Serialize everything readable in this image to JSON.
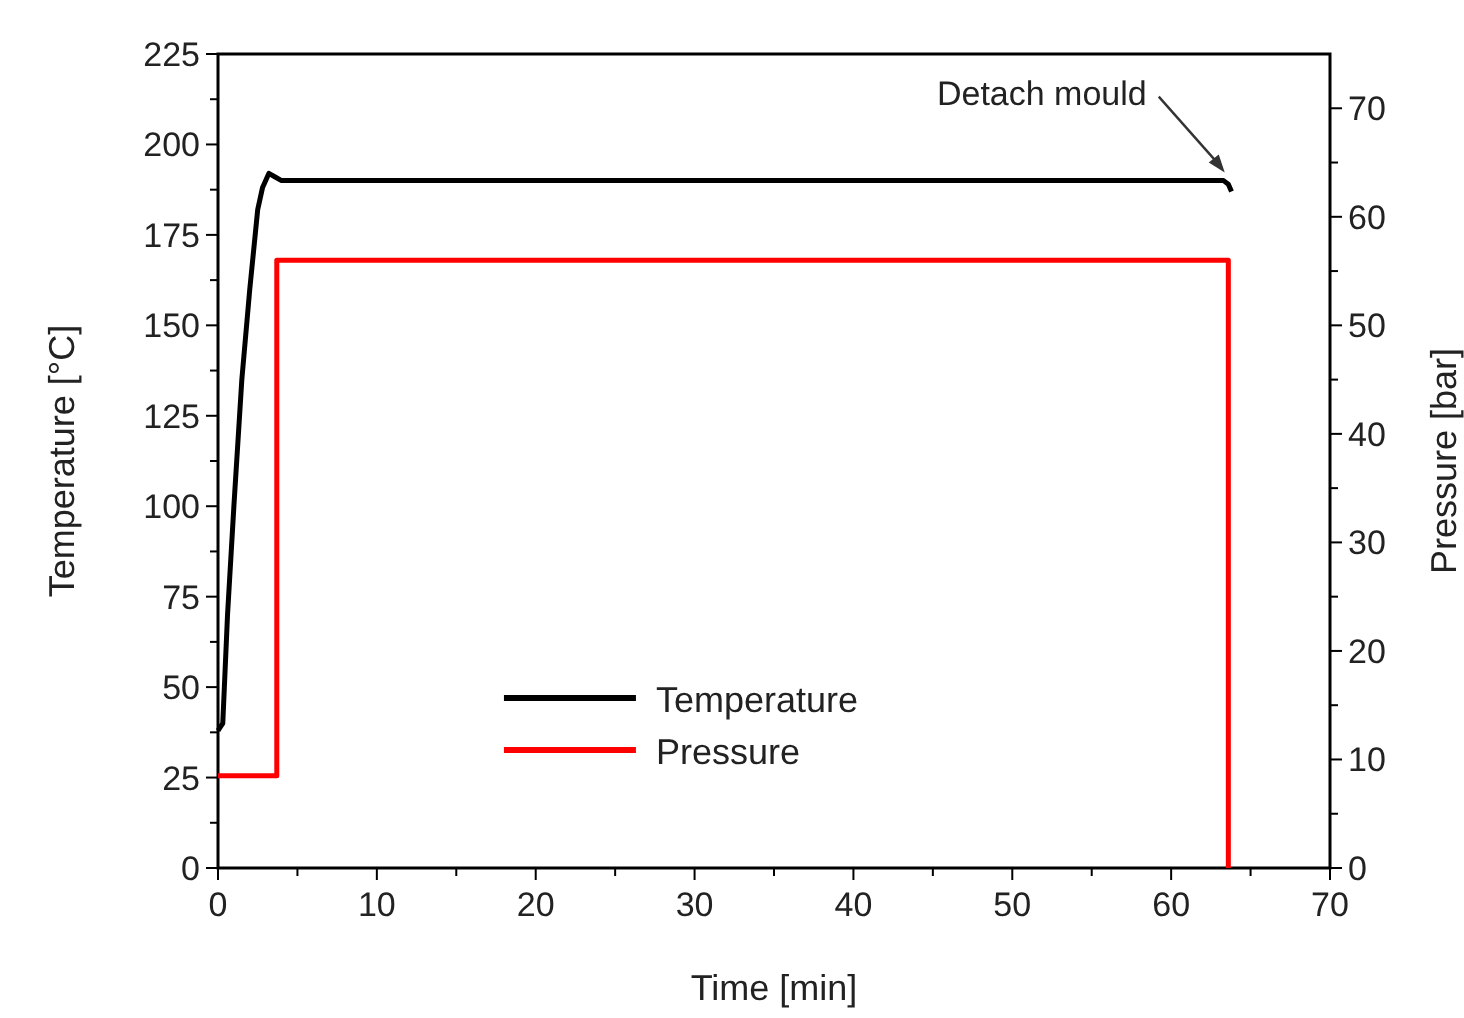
{
  "chart_data": {
    "type": "line",
    "xlabel": "Time [min]",
    "ylabel": "Temperature [°C]",
    "y2label": "Pressure [bar]",
    "xlim": [
      0,
      70
    ],
    "xticks": [
      0,
      10,
      20,
      30,
      40,
      50,
      60,
      70
    ],
    "ylim": [
      0,
      225
    ],
    "yticks": [
      0,
      25,
      50,
      75,
      100,
      125,
      150,
      175,
      200,
      225
    ],
    "y2lim": [
      0,
      75
    ],
    "y2ticks": [
      0,
      10,
      20,
      30,
      40,
      50,
      60,
      70
    ],
    "legend": "bottom",
    "grid": false,
    "marker": "none",
    "line_style": "solid",
    "annotations": [
      {
        "text": "Detach mould",
        "x": 63.5,
        "y": 190
      }
    ],
    "series": [
      {
        "name": "Temperature",
        "color": "#000000",
        "x": [
          0,
          0.3,
          0.6,
          1,
          1.5,
          2,
          2.5,
          2.8,
          3.2,
          3.6,
          4,
          10,
          30,
          50,
          63.3,
          63.6,
          63.8
        ],
        "values": [
          38,
          40,
          70,
          100,
          135,
          160,
          182,
          188,
          192,
          191,
          190,
          190,
          190,
          190,
          190,
          189,
          187
        ]
      },
      {
        "name": "Pressure",
        "color": "#ff0000",
        "type": "step",
        "axis": "y2",
        "x": [
          0,
          3.7,
          3.7,
          63.6,
          63.6
        ],
        "values": [
          8.5,
          8.5,
          56,
          56,
          0
        ]
      }
    ]
  }
}
